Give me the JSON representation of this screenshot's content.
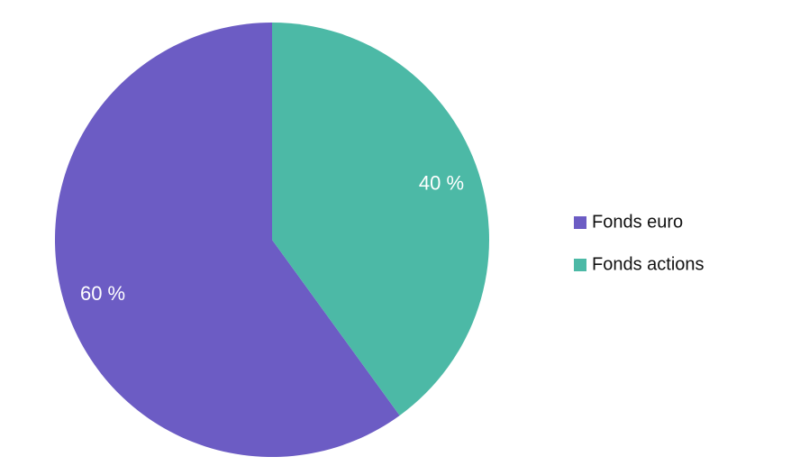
{
  "chart_data": {
    "type": "pie",
    "categories": [
      "Fonds euro",
      "Fonds actions"
    ],
    "values": [
      60,
      40
    ],
    "value_labels": [
      "60 %",
      "40 %"
    ],
    "colors": [
      "#6c5cc4",
      "#4cb9a6"
    ],
    "legend": "right"
  }
}
